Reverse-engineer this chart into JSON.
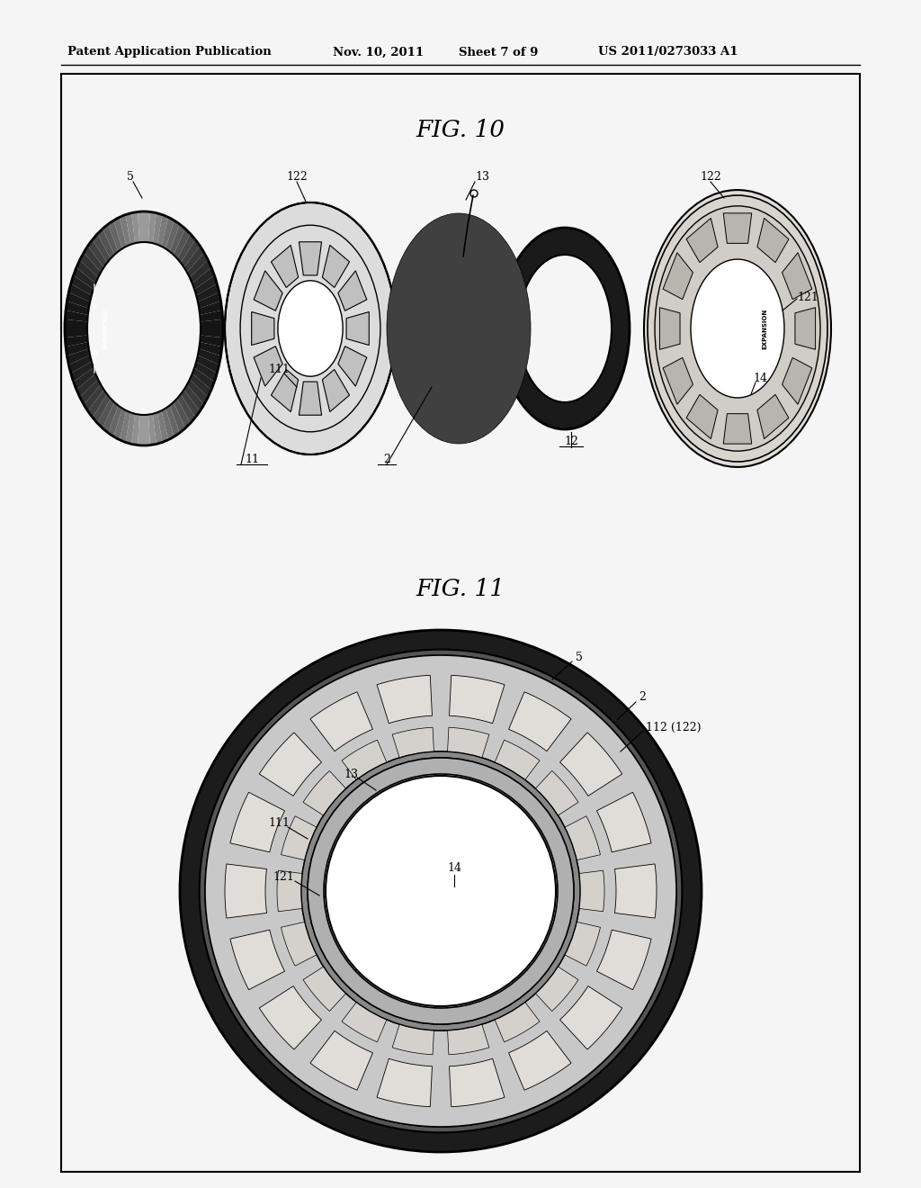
{
  "bg": "#f5f5f5",
  "header_text": "Patent Application Publication",
  "header_date": "Nov. 10, 2011",
  "header_sheet": "Sheet 7 of 9",
  "header_patent": "US 2011/0273033 A1",
  "fig10_title": "FIG. 10",
  "fig11_title": "FIG. 11"
}
